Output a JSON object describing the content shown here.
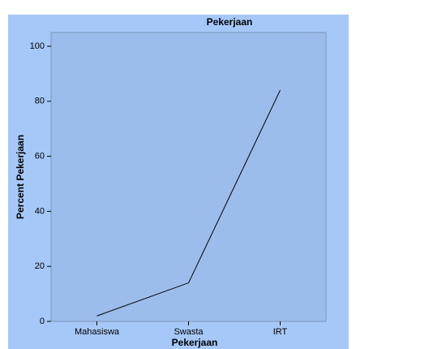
{
  "chart_data": {
    "type": "line",
    "title": "Pekerjaan",
    "x_label": "Pekerjaan",
    "y_label": "Percent Pekerjaan",
    "categories": [
      "Mahasiswa",
      "Swasta",
      "IRT"
    ],
    "values": [
      2,
      14,
      84
    ],
    "color": "#000000",
    "ylim": [
      0,
      105
    ],
    "yticks": [
      0,
      20,
      40,
      60,
      80,
      100
    ]
  }
}
